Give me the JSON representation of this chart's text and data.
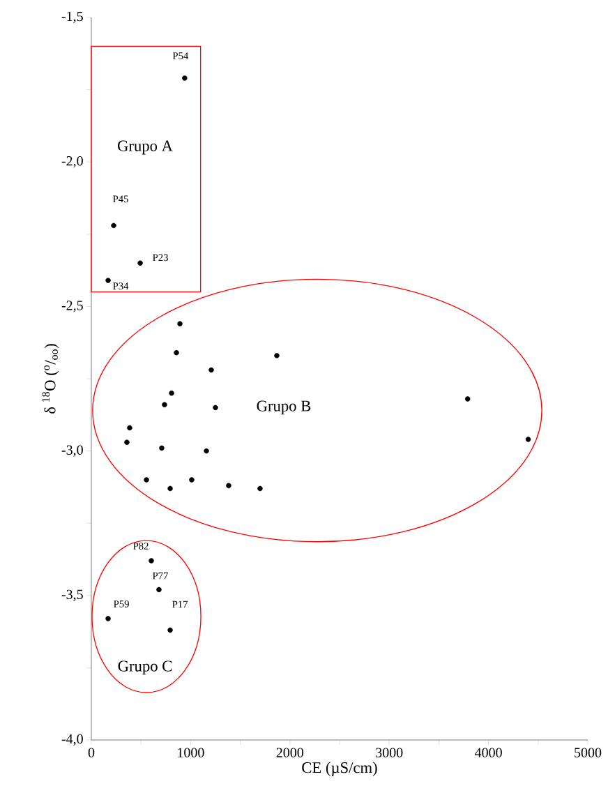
{
  "chart_data": {
    "type": "scatter",
    "xlabel": "CE (µS/cm)",
    "ylabel": "δ $^{18}$O ($^{o}$/$_{oo}$)",
    "x": [
      940,
      225,
      492,
      169,
      892,
      857,
      1868,
      1208,
      808,
      737,
      1250,
      3790,
      386,
      4400,
      358,
      709,
      1159,
      555,
      1011,
      794,
      1383,
      1699,
      604,
      681,
      169,
      794
    ],
    "values": [
      -1.71,
      -2.22,
      -2.35,
      -2.41,
      -2.56,
      -2.66,
      -2.67,
      -2.72,
      -2.8,
      -2.84,
      -2.85,
      -2.82,
      -2.92,
      -2.96,
      -2.97,
      -2.99,
      -3.0,
      -3.1,
      -3.1,
      -3.13,
      -3.12,
      -3.13,
      -3.38,
      -3.48,
      -3.58,
      -3.62
    ],
    "color": "#000000",
    "marker": "circle",
    "xlim": [
      0,
      5000
    ],
    "ylim": [
      -4.0,
      -1.5
    ],
    "xticks": [
      0,
      {
        "value": 500,
        "label": null
      },
      1000,
      {
        "value": 1500,
        "label": null
      },
      2000,
      {
        "value": 2500,
        "label": null
      },
      3000,
      {
        "value": 3500,
        "label": null
      },
      4000,
      {
        "value": 4500,
        "label": null
      },
      5000
    ],
    "yticks": [
      {
        "value": -4.0,
        "label": "-4,0"
      },
      {
        "value": -3.75,
        "label": null
      },
      {
        "value": -3.5,
        "label": "-3,5"
      },
      {
        "value": -3.25,
        "label": null
      },
      {
        "value": -3.0,
        "label": "-3,0"
      },
      {
        "value": -2.75,
        "label": null
      },
      {
        "value": -2.5,
        "label": "-2,5"
      },
      {
        "value": -2.25,
        "label": null
      },
      {
        "value": -2.0,
        "label": "-2,0"
      },
      {
        "value": -1.75,
        "label": null
      },
      {
        "value": -1.5,
        "label": "-1,5"
      }
    ],
    "grid": false,
    "annotations": [
      "Grupo A",
      "Grupo B",
      "Grupo C",
      {
        "text": "P54",
        "x": 940,
        "y": -1.71
      },
      {
        "text": "P45",
        "x": 225,
        "y": -2.22
      },
      {
        "text": "P23",
        "x": 492,
        "y": -2.35
      },
      {
        "text": "P34",
        "x": 169,
        "y": -2.41
      },
      {
        "text": "P82",
        "x": 604,
        "y": -3.38
      },
      {
        "text": "P77",
        "x": 681,
        "y": -3.48
      },
      {
        "text": "P59",
        "x": 169,
        "y": -3.58
      },
      {
        "text": "P17",
        "x": 794,
        "y": -3.62
      }
    ]
  }
}
